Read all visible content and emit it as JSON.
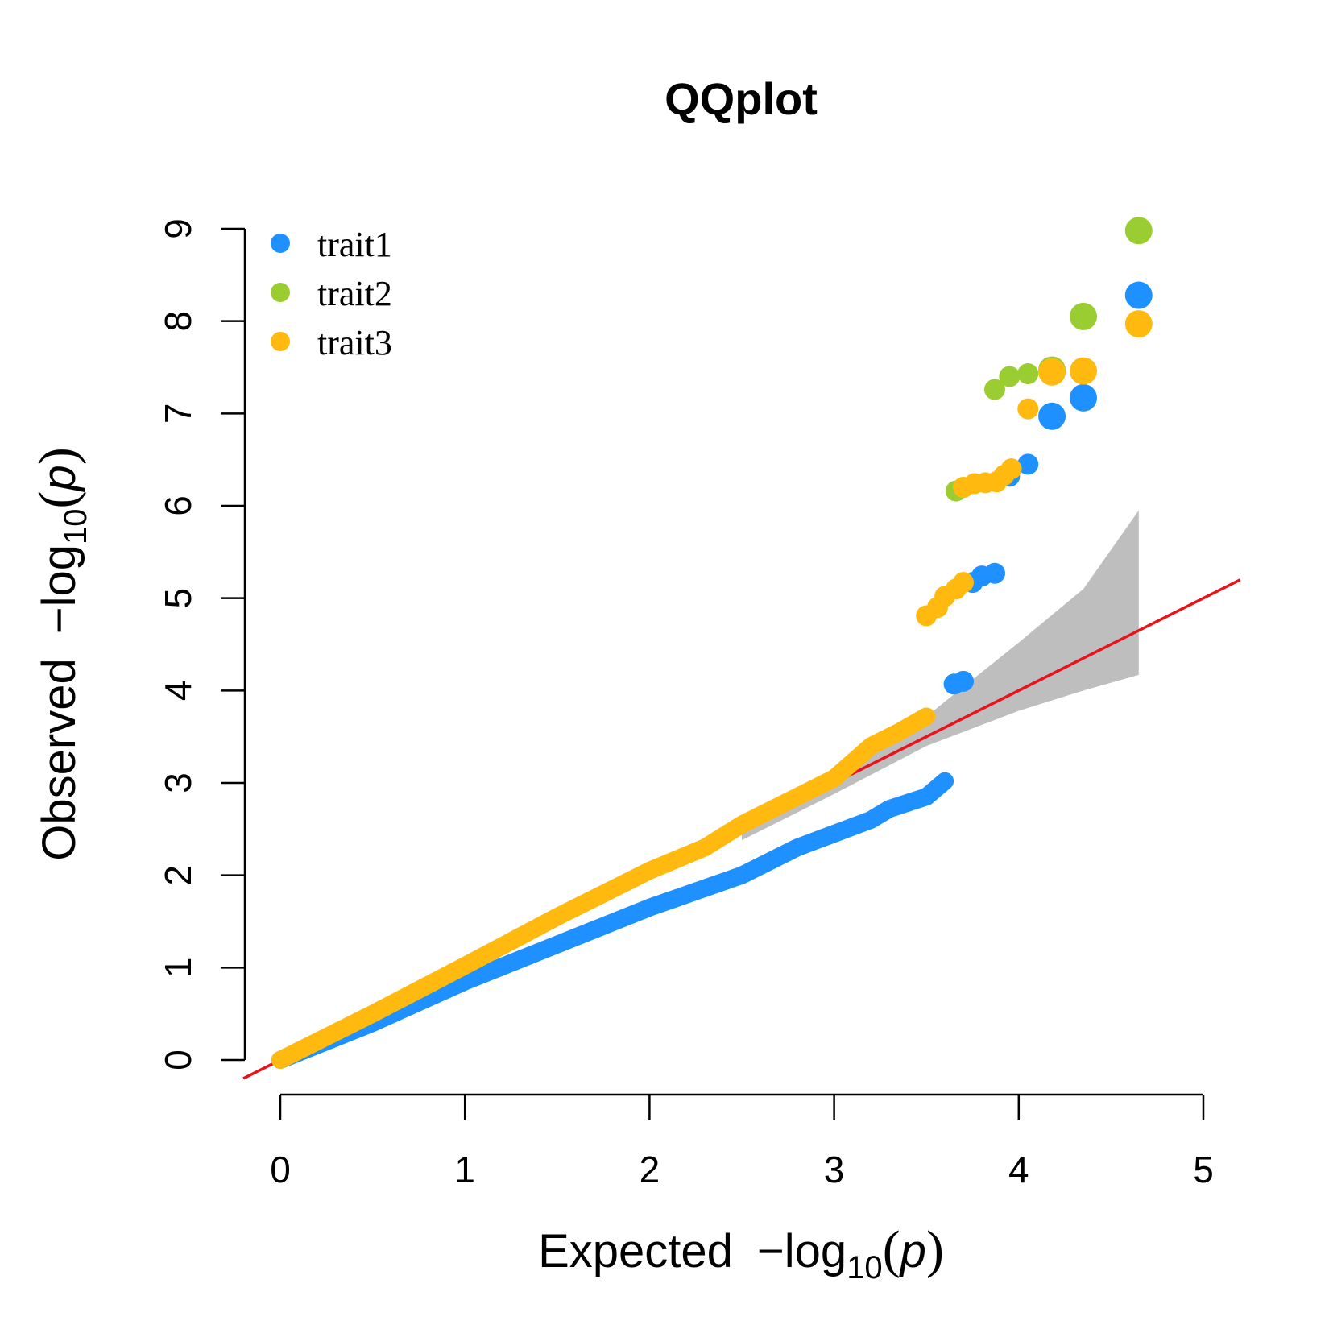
{
  "chart_data": {
    "type": "scatter",
    "title": "QQplot",
    "xlabel": {
      "prefix": "Expected",
      "minus": "−",
      "func": "log",
      "sub": "10",
      "var": "p"
    },
    "ylabel": {
      "prefix": "Observed",
      "minus": "−",
      "func": "log",
      "sub": "10",
      "var": "p"
    },
    "xlim": [
      0,
      5
    ],
    "ylim": [
      0,
      9
    ],
    "x_ticks": [
      "0",
      "1",
      "2",
      "3",
      "4",
      "5"
    ],
    "y_ticks": [
      "0",
      "1",
      "2",
      "3",
      "4",
      "5",
      "6",
      "7",
      "8",
      "9"
    ],
    "reference_line": {
      "color": "#e8141a",
      "slope": 1,
      "intercept": 0
    },
    "confidence_band": {
      "color": "#bebebe",
      "upper": [
        [
          2.5,
          2.62
        ],
        [
          3.0,
          3.14
        ],
        [
          3.5,
          3.72
        ],
        [
          4.0,
          4.52
        ],
        [
          4.35,
          5.1
        ],
        [
          4.65,
          5.95
        ]
      ],
      "lower": [
        [
          4.65,
          4.17
        ],
        [
          4.35,
          4.0
        ],
        [
          4.0,
          3.78
        ],
        [
          3.5,
          3.4
        ],
        [
          3.0,
          2.88
        ],
        [
          2.5,
          2.38
        ]
      ]
    },
    "legend": {
      "position": "top-left",
      "entries": [
        {
          "label": "trait1",
          "color": "#1e90ff"
        },
        {
          "label": "trait2",
          "color": "#9acd32"
        },
        {
          "label": "trait3",
          "color": "#ffb90f"
        }
      ]
    },
    "series": [
      {
        "name": "trait1",
        "color": "#1e90ff",
        "curve": [
          [
            0,
            0
          ],
          [
            0.5,
            0.4
          ],
          [
            1.0,
            0.85
          ],
          [
            1.5,
            1.25
          ],
          [
            2.0,
            1.65
          ],
          [
            2.5,
            2.0
          ],
          [
            2.8,
            2.3
          ],
          [
            3.0,
            2.45
          ],
          [
            3.2,
            2.6
          ],
          [
            3.3,
            2.72
          ],
          [
            3.5,
            2.85
          ],
          [
            3.6,
            3.02
          ]
        ],
        "points": [
          [
            3.65,
            4.07
          ],
          [
            3.7,
            4.1
          ],
          [
            3.75,
            5.17
          ],
          [
            3.8,
            5.24
          ],
          [
            3.87,
            5.27
          ],
          [
            3.95,
            6.32
          ],
          [
            4.05,
            6.45
          ],
          [
            4.18,
            6.97
          ],
          [
            4.35,
            7.17
          ],
          [
            4.65,
            8.28
          ]
        ]
      },
      {
        "name": "trait2",
        "color": "#9acd32",
        "curve": [],
        "points": [
          [
            3.66,
            6.16
          ],
          [
            3.7,
            6.2
          ],
          [
            3.87,
            7.26
          ],
          [
            3.95,
            7.4
          ],
          [
            4.05,
            7.43
          ],
          [
            4.18,
            7.47
          ],
          [
            4.35,
            8.05
          ],
          [
            4.65,
            8.98
          ]
        ]
      },
      {
        "name": "trait3",
        "color": "#ffb90f",
        "curve": [
          [
            0,
            0
          ],
          [
            0.5,
            0.5
          ],
          [
            1.0,
            1.02
          ],
          [
            1.5,
            1.55
          ],
          [
            2.0,
            2.05
          ],
          [
            2.3,
            2.3
          ],
          [
            2.5,
            2.55
          ],
          [
            2.8,
            2.85
          ],
          [
            3.0,
            3.05
          ],
          [
            3.2,
            3.4
          ],
          [
            3.35,
            3.55
          ],
          [
            3.5,
            3.72
          ]
        ],
        "points": [
          [
            3.5,
            4.81
          ],
          [
            3.56,
            4.9
          ],
          [
            3.6,
            5.02
          ],
          [
            3.66,
            5.1
          ],
          [
            3.7,
            5.17
          ],
          [
            3.7,
            6.2
          ],
          [
            3.76,
            6.24
          ],
          [
            3.82,
            6.25
          ],
          [
            3.88,
            6.26
          ],
          [
            3.92,
            6.33
          ],
          [
            3.96,
            6.4
          ],
          [
            4.05,
            7.05
          ],
          [
            4.18,
            7.45
          ],
          [
            4.35,
            7.46
          ],
          [
            4.65,
            7.97
          ]
        ]
      }
    ]
  }
}
